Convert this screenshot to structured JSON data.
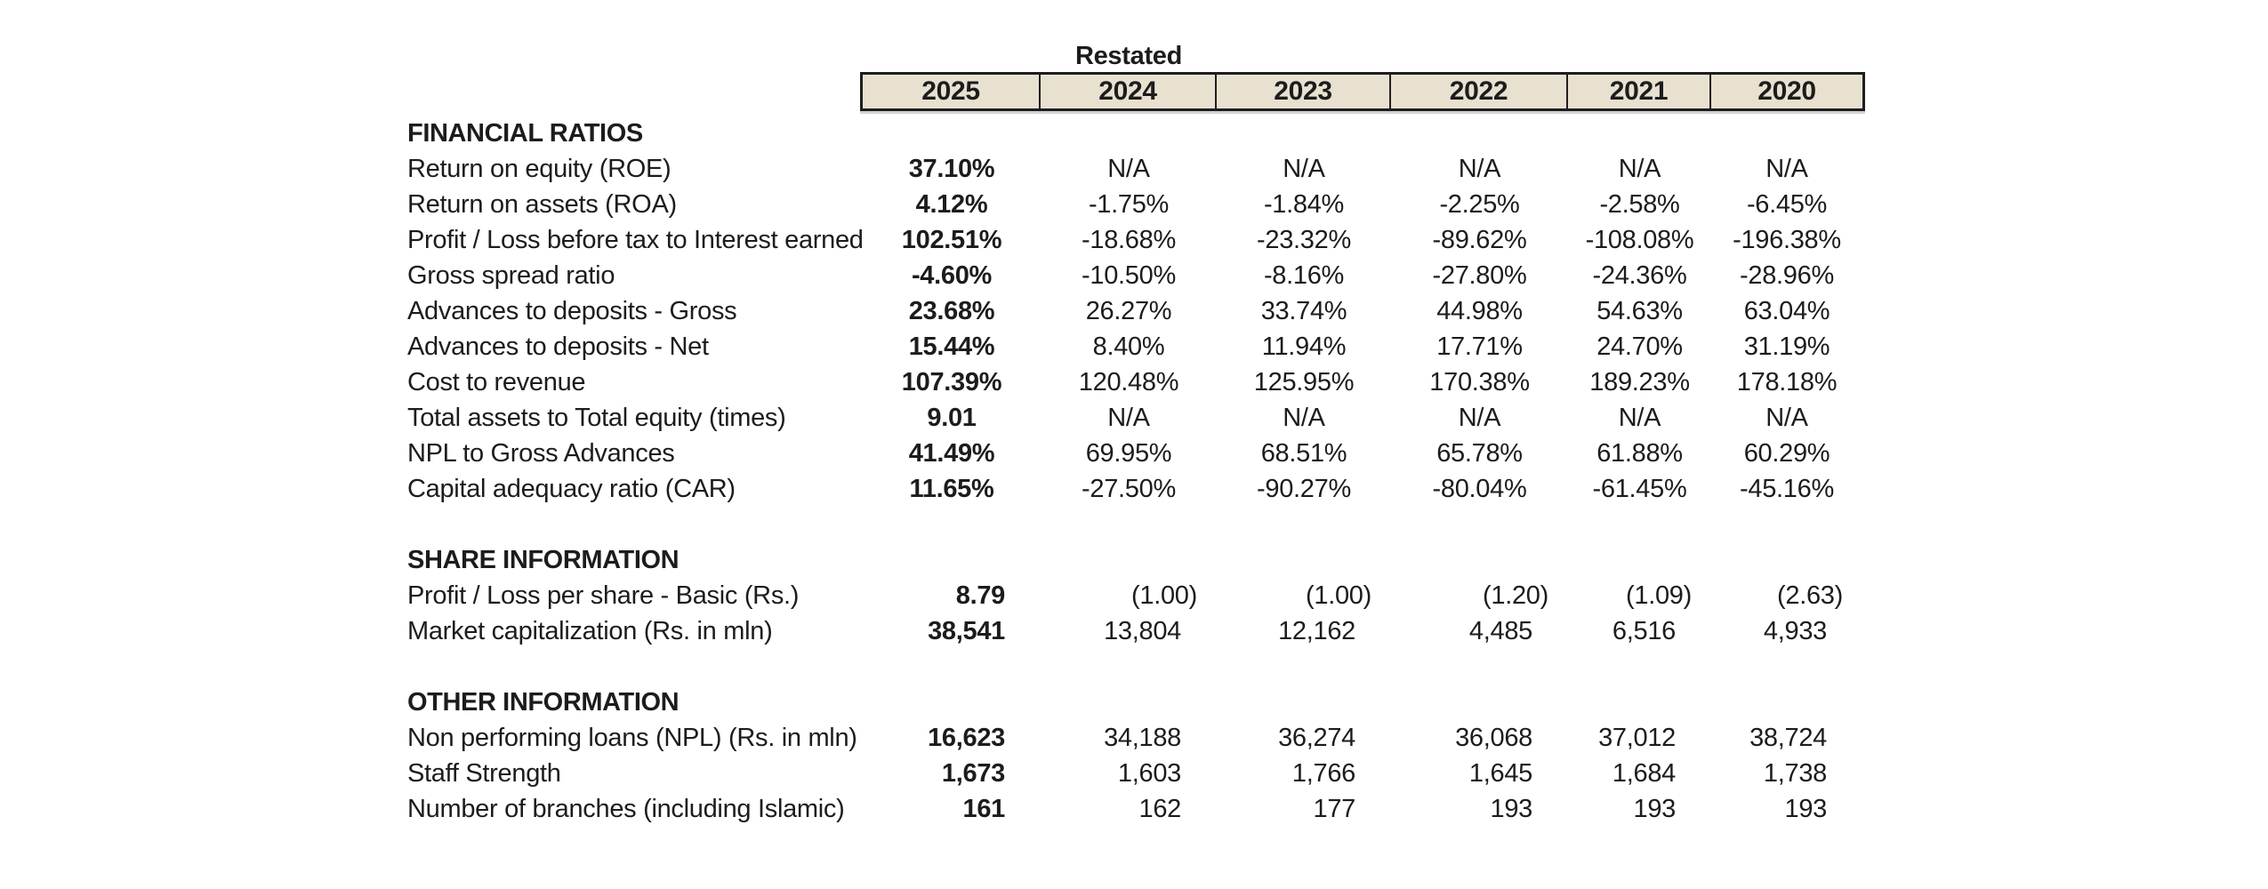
{
  "colors": {
    "header_fill": "#e8e1d0",
    "border": "#1e1e1e",
    "text": "#1c1c1c",
    "background": "#ffffff"
  },
  "header": {
    "restated_label": "Restated",
    "years": [
      "2025",
      "2024",
      "2023",
      "2022",
      "2021",
      "2020"
    ]
  },
  "sections": [
    {
      "heading": "FINANCIAL RATIOS",
      "rows": [
        {
          "label": "Return on equity (ROE)",
          "align": "center",
          "values": [
            "37.10%",
            "N/A",
            "N/A",
            "N/A",
            "N/A",
            "N/A"
          ]
        },
        {
          "label": "Return on assets (ROA)",
          "align": "center",
          "values": [
            "4.12%",
            "-1.75%",
            "-1.84%",
            "-2.25%",
            "-2.58%",
            "-6.45%"
          ]
        },
        {
          "label": "Profit / Loss before tax to Interest earned",
          "align": "center",
          "values": [
            "102.51%",
            "-18.68%",
            "-23.32%",
            "-89.62%",
            "-108.08%",
            "-196.38%"
          ]
        },
        {
          "label": "Gross spread ratio",
          "align": "center",
          "values": [
            "-4.60%",
            "-10.50%",
            "-8.16%",
            "-27.80%",
            "-24.36%",
            "-28.96%"
          ]
        },
        {
          "label": "Advances to deposits - Gross",
          "align": "center",
          "values": [
            "23.68%",
            "26.27%",
            "33.74%",
            "44.98%",
            "54.63%",
            "63.04%"
          ]
        },
        {
          "label": "Advances to deposits - Net",
          "align": "center",
          "values": [
            "15.44%",
            "8.40%",
            "11.94%",
            "17.71%",
            "24.70%",
            "31.19%"
          ]
        },
        {
          "label": "Cost to revenue",
          "align": "center",
          "values": [
            "107.39%",
            "120.48%",
            "125.95%",
            "170.38%",
            "189.23%",
            "178.18%"
          ]
        },
        {
          "label": "Total assets to Total equity (times)",
          "align": "center",
          "values": [
            "9.01",
            "N/A",
            "N/A",
            "N/A",
            "N/A",
            "N/A"
          ]
        },
        {
          "label": "NPL to Gross Advances",
          "align": "center",
          "values": [
            "41.49%",
            "69.95%",
            "68.51%",
            "65.78%",
            "61.88%",
            "60.29%"
          ]
        },
        {
          "label": "Capital adequacy ratio (CAR)",
          "align": "center",
          "values": [
            "11.65%",
            "-27.50%",
            "-90.27%",
            "-80.04%",
            "-61.45%",
            "-45.16%"
          ]
        }
      ]
    },
    {
      "heading": "SHARE INFORMATION",
      "rows": [
        {
          "label": "Profit / Loss per share - Basic (Rs.)",
          "align": "right",
          "values": [
            "8.79",
            "(1.00)",
            "(1.00)",
            "(1.20)",
            "(1.09)",
            "(2.63)"
          ]
        },
        {
          "label": "Market capitalization (Rs. in mln)",
          "align": "right",
          "values": [
            "38,541",
            "13,804",
            "12,162",
            "4,485",
            "6,516",
            "4,933"
          ]
        }
      ]
    },
    {
      "heading": "OTHER INFORMATION",
      "rows": [
        {
          "label": "Non performing loans (NPL) (Rs. in mln)",
          "align": "right",
          "values": [
            "16,623",
            "34,188",
            "36,274",
            "36,068",
            "37,012",
            "38,724"
          ]
        },
        {
          "label": "Staff Strength",
          "align": "right",
          "values": [
            "1,673",
            "1,603",
            "1,766",
            "1,645",
            "1,684",
            "1,738"
          ]
        },
        {
          "label": "Number of branches (including Islamic)",
          "align": "right",
          "values": [
            "161",
            "162",
            "177",
            "193",
            "193",
            "193"
          ]
        }
      ]
    }
  ]
}
